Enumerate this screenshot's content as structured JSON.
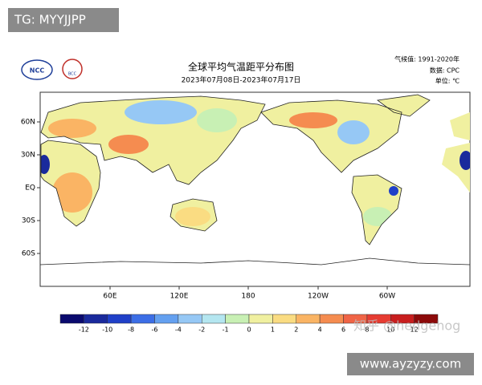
{
  "watermark_top": "TG: MYYJJPP",
  "header": {
    "logos": [
      "NCC",
      "BCC"
    ],
    "title": "全球平均气温距平分布图",
    "subtitle": "2023年07月08日-2023年07月17日",
    "info": [
      "气候值: 1991-2020年",
      "数据: CPC",
      "单位: ℃"
    ]
  },
  "map": {
    "lat_labels": [
      "60N",
      "30N",
      "EQ",
      "30S",
      "60S"
    ],
    "lon_labels": [
      "60E",
      "120E",
      "180",
      "120W",
      "60W"
    ]
  },
  "legend": {
    "ticks": [
      -12,
      -10,
      -8,
      -6,
      -4,
      -2,
      -1,
      0,
      1,
      2,
      4,
      6,
      8,
      10,
      12
    ],
    "colors": [
      "#0a0a6e",
      "#1a2a9c",
      "#2040c8",
      "#3c6ee6",
      "#64a0f0",
      "#96c8f5",
      "#b4e6f0",
      "#c8f0b4",
      "#f0f0a0",
      "#fadc82",
      "#fab464",
      "#f58c50",
      "#f06446",
      "#e63c32",
      "#c81e1e",
      "#8c0a0a"
    ]
  },
  "watermark": "知乎 @hedgehog",
  "footer": "www.ayzyzy.com"
}
